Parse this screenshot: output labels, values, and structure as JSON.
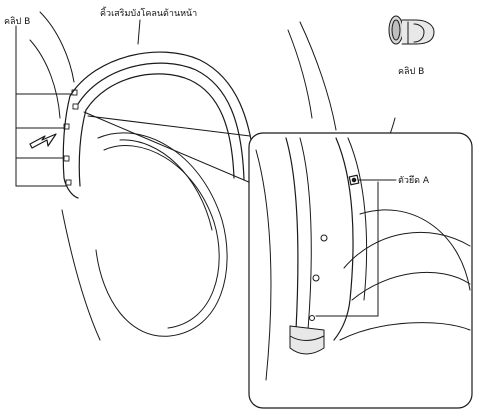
{
  "labels": {
    "clip_b_top_left": "คลิป B",
    "fender_flare": "คิ้วเสริมบังโคลนด้านหน้า",
    "clip_b_detail": "คลิป B",
    "fastener_a": "ตัวยึด A"
  },
  "colors": {
    "line": "#1a1a1a",
    "arrow_fill": "#ffffff",
    "arrow_stroke": "#1a1a1a"
  }
}
